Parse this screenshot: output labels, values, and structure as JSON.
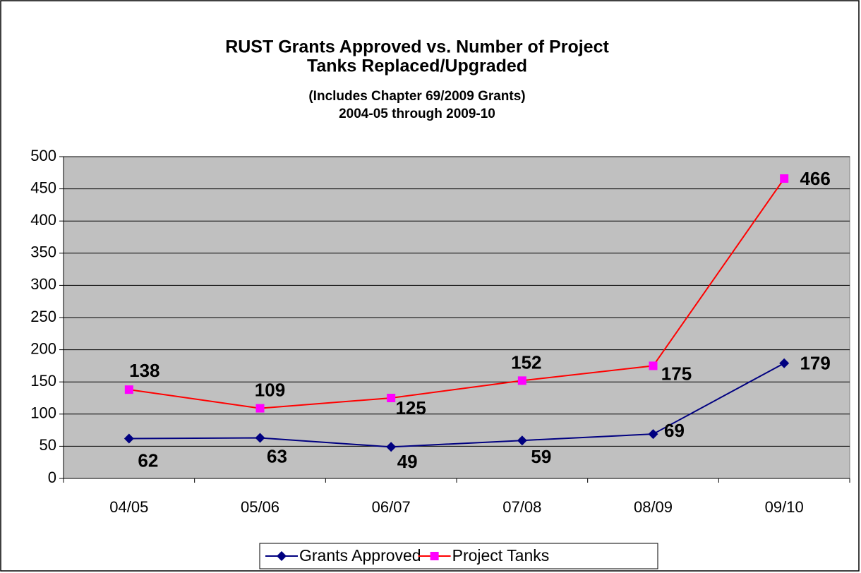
{
  "chart_data": {
    "type": "line",
    "title": [
      "RUST Grants Approved vs. Number of Project",
      "Tanks Replaced/Upgraded"
    ],
    "subtitle": [
      "(Includes Chapter 69/2009 Grants)",
      "2004-05 through 2009-10"
    ],
    "categories": [
      "04/05",
      "05/06",
      "06/07",
      "07/08",
      "08/09",
      "09/10"
    ],
    "series": [
      {
        "name": "Grants Approved",
        "color": "#000080",
        "marker": "diamond",
        "marker_color": "#000080",
        "values": [
          62,
          63,
          49,
          59,
          69,
          179
        ]
      },
      {
        "name": "Project Tanks",
        "color": "#ff0000",
        "marker": "square",
        "marker_color": "#ff00ff",
        "values": [
          138,
          109,
          125,
          152,
          175,
          466
        ]
      }
    ],
    "ylim": [
      0,
      500
    ],
    "yticks": [
      0,
      50,
      100,
      150,
      200,
      250,
      300,
      350,
      400,
      450,
      500
    ],
    "grid": true,
    "legend": "bottom"
  }
}
